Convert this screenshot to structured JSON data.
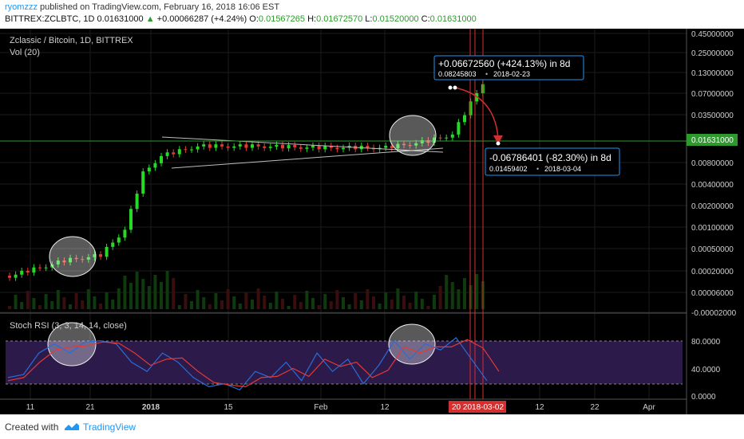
{
  "header": {
    "author": "ryomzzz",
    "published_text": " published on TradingView.com, February 16, 2018 16:06 EST",
    "symbol": "BITTREX:ZCLBTC, 1D",
    "price": "0.01631000",
    "change": "+0.00066287 (+4.24%)",
    "ohlc": [
      {
        "label": "O:",
        "value": "0.01567265"
      },
      {
        "label": "H:",
        "value": "0.01672570"
      },
      {
        "label": "L:",
        "value": "0.01520000"
      },
      {
        "label": "C:",
        "value": "0.01631000"
      }
    ]
  },
  "pane": {
    "title": "Zclassic / Bitcoin, 1D, BITTREX",
    "vol_label": "Vol (20)",
    "rsi_label": "Stoch RSI (3, 3, 14, 14, close)",
    "last_price_tag": "0.01631000"
  },
  "footer": {
    "created_with": "Created with",
    "brand": "TradingView"
  },
  "annotations": {
    "up": {
      "title": "+0.06672560 (+424.13%) in 8d",
      "price": "0.08245803",
      "date": "2018-02-23"
    },
    "down": {
      "title": "-0.06786401 (-82.30%) in 8d",
      "price": "0.01459402",
      "date": "2018-03-04"
    },
    "date_tag": "20  2018-03-02"
  },
  "chart_data": [
    {
      "type": "candlestick",
      "title": "Zclassic / Bitcoin, 1D, BITTREX",
      "yscale": "log",
      "y_ticks": [
        "0.45000000",
        "0.25000000",
        "0.13000000",
        "0.07000000",
        "0.03500000",
        "0.01631000",
        "0.00800000",
        "0.00400000",
        "0.00200000",
        "0.00100000",
        "0.00050000",
        "0.00020000",
        "0.00006000",
        "-0.00002000"
      ],
      "x_ticks": [
        "11",
        "21",
        "2018",
        "15",
        "Feb",
        "12",
        "20",
        "12",
        "22",
        "Apr"
      ],
      "close_path": [
        {
          "date": "2017-12-05",
          "close": 0.00015
        },
        {
          "date": "2017-12-14",
          "close": 0.00025
        },
        {
          "date": "2017-12-20",
          "close": 0.0003
        },
        {
          "date": "2017-12-24",
          "close": 0.0007
        },
        {
          "date": "2017-12-27",
          "close": 0.0045
        },
        {
          "date": "2017-12-30",
          "close": 0.008
        },
        {
          "date": "2018-01-05",
          "close": 0.011
        },
        {
          "date": "2018-01-15",
          "close": 0.011
        },
        {
          "date": "2018-01-25",
          "close": 0.0105
        },
        {
          "date": "2018-02-05",
          "close": 0.0105
        },
        {
          "date": "2018-02-12",
          "close": 0.013
        },
        {
          "date": "2018-02-16",
          "close": 0.01631
        },
        {
          "date": "2018-02-21",
          "close": 0.09
        }
      ],
      "annotations": [
        "+0.06672560 (+424.13%) in 8d",
        "-0.06786401 (-82.30%) in 8d"
      ]
    },
    {
      "type": "line",
      "title": "Stoch RSI (3, 3, 14, 14, close)",
      "y_ticks": [
        "80.0000",
        "40.0000",
        "0.0000"
      ],
      "band": [
        20,
        80
      ],
      "series": [
        {
          "color": "#2b6cd6",
          "values": [
            30,
            35,
            70,
            85,
            70,
            88,
            90,
            85,
            55,
            40,
            70,
            55,
            30,
            15,
            20,
            10,
            40,
            30,
            55,
            25,
            70,
            40,
            60,
            20,
            50,
            90,
            60,
            85,
            75,
            95,
            60,
            25
          ]
        },
        {
          "color": "#e53935",
          "values": [
            25,
            30,
            55,
            75,
            80,
            82,
            88,
            86,
            70,
            50,
            60,
            62,
            40,
            22,
            18,
            15,
            30,
            32,
            45,
            32,
            60,
            48,
            55,
            30,
            42,
            80,
            70,
            80,
            80,
            92,
            78,
            40
          ]
        }
      ]
    }
  ]
}
